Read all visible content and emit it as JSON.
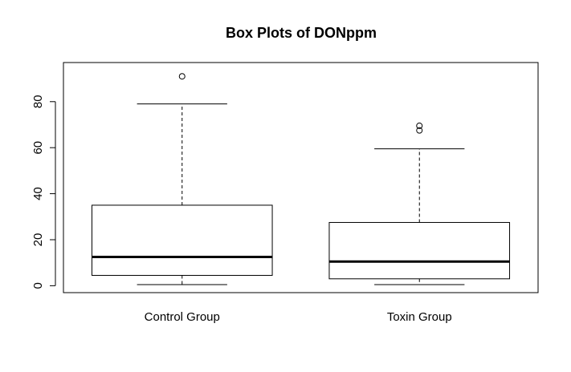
{
  "chart_data": {
    "type": "box",
    "title": "Box Plots of DONppm",
    "xlabel": "",
    "ylabel": "",
    "ylim": [
      -3,
      97
    ],
    "yticks": [
      0,
      20,
      40,
      60,
      80
    ],
    "categories": [
      "Control Group",
      "Toxin Group"
    ],
    "boxes": [
      {
        "category": "Control Group",
        "whisker_low": 0.5,
        "q1": 4.5,
        "median": 12.5,
        "q3": 35,
        "whisker_high": 79,
        "outliers": [
          91
        ]
      },
      {
        "category": "Toxin Group",
        "whisker_low": 0.5,
        "q1": 3,
        "median": 10.5,
        "q3": 27.5,
        "whisker_high": 59.5,
        "outliers": [
          67.5,
          69.5
        ]
      }
    ],
    "grid": false,
    "legend": "none"
  }
}
